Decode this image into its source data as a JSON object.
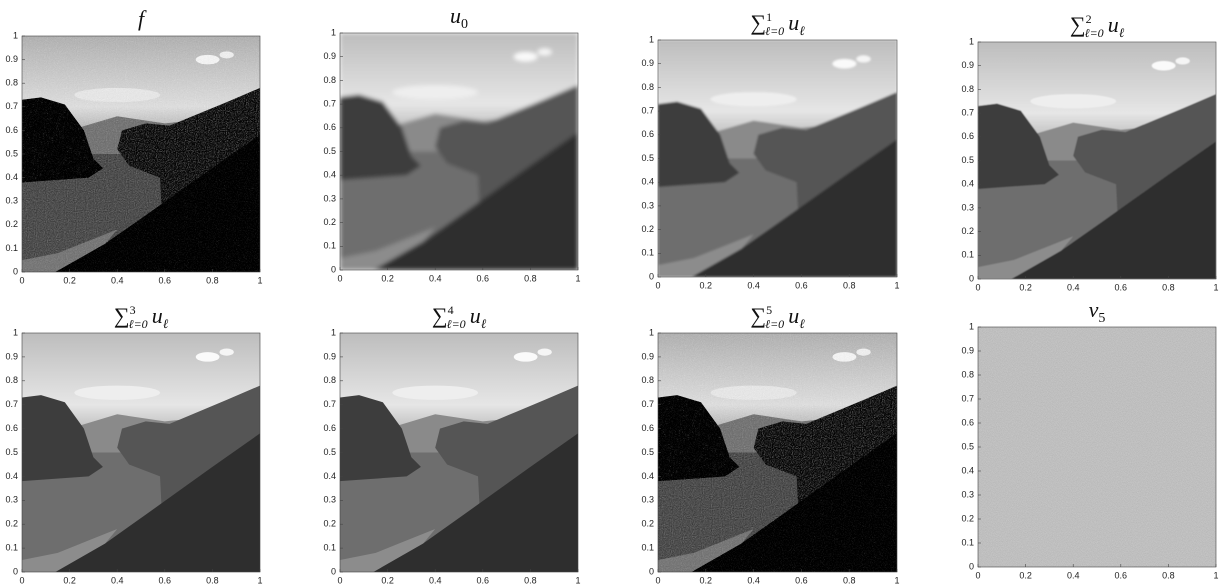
{
  "panels": [
    {
      "title": {
        "text": "f"
      }
    },
    {
      "title": {
        "text": "u",
        "sub": "0"
      }
    },
    {
      "title": {
        "symbol": "∑",
        "sup": "1",
        "sub": "ℓ=0",
        "term": "u",
        "term_sub": "ℓ"
      }
    },
    {
      "title": {
        "symbol": "∑",
        "sup": "2",
        "sub": "ℓ=0",
        "term": "u",
        "term_sub": "ℓ"
      }
    },
    {
      "title": {
        "symbol": "∑",
        "sup": "3",
        "sub": "ℓ=0",
        "term": "u",
        "term_sub": "ℓ"
      }
    },
    {
      "title": {
        "symbol": "∑",
        "sup": "4",
        "sub": "ℓ=0",
        "term": "u",
        "term_sub": "ℓ"
      }
    },
    {
      "title": {
        "symbol": "∑",
        "sup": "5",
        "sub": "ℓ=0",
        "term": "u",
        "term_sub": "ℓ"
      }
    },
    {
      "title": {
        "text": "v",
        "sub": "5"
      }
    }
  ],
  "xlim": [
    0,
    1
  ],
  "ylim": [
    0,
    1
  ],
  "xticks": [
    0,
    0.2,
    0.4,
    0.6,
    0.8,
    1
  ],
  "yticks": [
    0,
    0.1,
    0.2,
    0.3,
    0.4,
    0.5,
    0.6,
    0.7,
    0.8,
    0.9,
    1
  ]
}
